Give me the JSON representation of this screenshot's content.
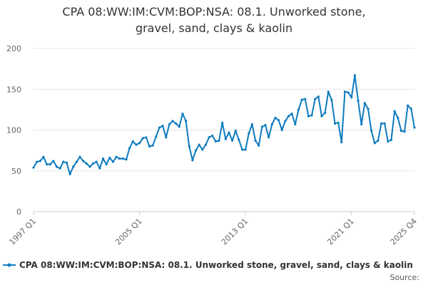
{
  "chart_data": {
    "type": "line",
    "title_line1": "CPA 08:WW:IM:CVM:BOP:NSA: 08.1. Unworked stone,",
    "title_line2": "gravel, sand, clays & kaolin",
    "xlabel": "",
    "ylabel": "",
    "ylim": [
      0,
      200
    ],
    "yticks": [
      0,
      50,
      100,
      150,
      200
    ],
    "xticks": [
      "1997 Q1",
      "2005 Q1",
      "2013 Q1",
      "2021 Q1",
      "2025 Q4"
    ],
    "x_first": "1997 Q1",
    "x_last": "2025 Q4",
    "grid": true,
    "legend_position": "bottom",
    "source_label": "Source:",
    "series": [
      {
        "name": "CPA 08:WW:IM:CVM:BOP:NSA: 08.1. Unworked stone, gravel, sand, clays & kaolin",
        "color": "#0e7bbf",
        "values": [
          54,
          61,
          62,
          67,
          58,
          58,
          62,
          55,
          53,
          61,
          60,
          46,
          55,
          61,
          67,
          62,
          59,
          55,
          59,
          61,
          53,
          65,
          58,
          66,
          61,
          67,
          65,
          65,
          64,
          78,
          86,
          82,
          84,
          90,
          91,
          80,
          81,
          92,
          103,
          105,
          91,
          107,
          111,
          108,
          104,
          120,
          111,
          80,
          63,
          75,
          82,
          76,
          82,
          91,
          93,
          86,
          87,
          109,
          89,
          97,
          87,
          99,
          88,
          76,
          76,
          96,
          107,
          87,
          81,
          104,
          106,
          91,
          107,
          115,
          112,
          100,
          111,
          117,
          120,
          107,
          125,
          137,
          138,
          117,
          118,
          138,
          141,
          117,
          121,
          147,
          137,
          108,
          109,
          85,
          147,
          146,
          140,
          167,
          136,
          107,
          133,
          126,
          99,
          84,
          87,
          108,
          108,
          86,
          88,
          123,
          115,
          99,
          98,
          130,
          126,
          103
        ]
      }
    ]
  }
}
